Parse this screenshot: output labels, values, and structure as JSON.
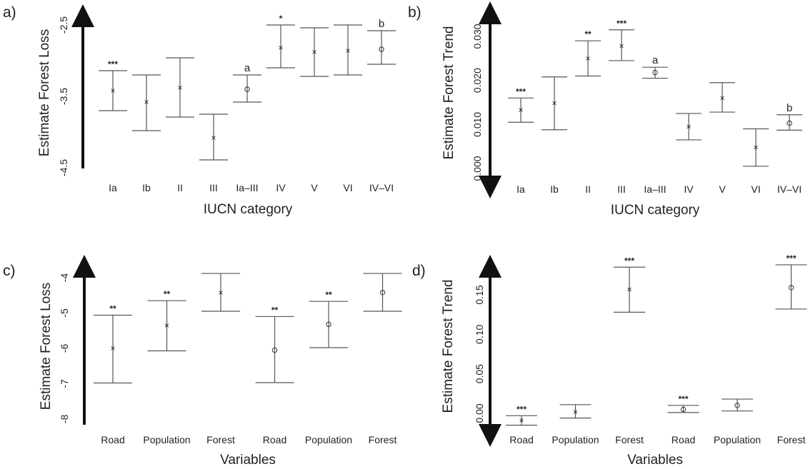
{
  "chart_data": [
    {
      "panel": "a)",
      "type": "scatter",
      "ylabel": "Estimate Forest Loss",
      "xlabel": "IUCN category",
      "ylim": [
        -4.5,
        -2.5
      ],
      "yticks": [
        -2.5,
        -3.5,
        -4.5
      ],
      "y_tick_labels": [
        "-2.5",
        "-3.5",
        "-4.5"
      ],
      "categories": [
        "Ia",
        "Ib",
        "II",
        "III",
        "Ia–III",
        "IV",
        "V",
        "VI",
        "IV–VI"
      ],
      "estimate": [
        -3.42,
        -3.58,
        -3.38,
        -4.08,
        -3.4,
        -2.82,
        -2.88,
        -2.86,
        -2.84
      ],
      "lower": [
        -3.7,
        -3.98,
        -3.79,
        -4.39,
        -3.58,
        -3.1,
        -3.22,
        -3.2,
        -3.05
      ],
      "upper": [
        -3.14,
        -3.2,
        -2.96,
        -3.75,
        -3.2,
        -2.5,
        -2.54,
        -2.5,
        -2.58
      ],
      "markers": [
        "x",
        "x",
        "x",
        "x",
        "o",
        "x",
        "x",
        "x",
        "o"
      ],
      "significance": [
        "***",
        "",
        "",
        "",
        "",
        "*",
        "",
        "",
        ""
      ],
      "group_labels": [
        "",
        "",
        "",
        "",
        "a",
        "",
        "",
        "",
        "b"
      ]
    },
    {
      "panel": "b)",
      "type": "scatter",
      "ylabel": "Estimate Forest Trend",
      "xlabel": "IUCN category",
      "ylim": [
        0.0,
        0.033
      ],
      "yticks": [
        0.0,
        0.01,
        0.02,
        0.03
      ],
      "y_tick_labels": [
        "0.000",
        "0.010",
        "0.020",
        "0.030"
      ],
      "categories": [
        "Ia",
        "Ib",
        "II",
        "III",
        "Ia–III",
        "IV",
        "V",
        "VI",
        "IV–VI"
      ],
      "estimate": [
        0.0133,
        0.0148,
        0.025,
        0.0278,
        0.0218,
        0.0095,
        0.016,
        0.0048,
        0.0103
      ],
      "lower": [
        0.0105,
        0.0088,
        0.021,
        0.0245,
        0.0205,
        0.0065,
        0.0128,
        0.0005,
        0.0087
      ],
      "upper": [
        0.016,
        0.0208,
        0.029,
        0.0315,
        0.023,
        0.0125,
        0.0195,
        0.009,
        0.0122
      ],
      "markers": [
        "x",
        "x",
        "x",
        "x",
        "o",
        "x",
        "x",
        "x",
        "o"
      ],
      "significance": [
        "***",
        "",
        "**",
        "***",
        "",
        "",
        "",
        "",
        ""
      ],
      "group_labels": [
        "",
        "",
        "",
        "",
        "a",
        "",
        "",
        "",
        "b"
      ]
    },
    {
      "panel": "c)",
      "type": "scatter",
      "ylabel": "Estimate Forest Loss",
      "xlabel": "Variables",
      "ylim": [
        -8,
        -3.6
      ],
      "yticks": [
        -4,
        -5,
        -6,
        -7,
        -8
      ],
      "y_tick_labels": [
        "-4",
        "-5",
        "-6",
        "-7",
        "-8"
      ],
      "categories": [
        "Road",
        "Population",
        "Forest",
        "Road",
        "Population",
        "Forest"
      ],
      "estimate": [
        -6.0,
        -5.35,
        -4.42,
        -6.05,
        -5.32,
        -4.42
      ],
      "lower": [
        -6.98,
        -6.07,
        -4.95,
        -6.97,
        -5.98,
        -4.95
      ],
      "upper": [
        -5.06,
        -4.65,
        -3.88,
        -5.1,
        -4.67,
        -3.88
      ],
      "markers": [
        "x",
        "x",
        "x",
        "o",
        "o",
        "o"
      ],
      "significance": [
        "**",
        "**",
        "",
        "**",
        "**",
        ""
      ]
    },
    {
      "panel": "d)",
      "type": "scatter",
      "ylabel": "Estimate Forest Trend",
      "xlabel": "Variables",
      "ylim": [
        -0.01,
        0.19
      ],
      "yticks": [
        0.0,
        0.05,
        0.1,
        0.15
      ],
      "y_tick_labels": [
        "0.00",
        "0.05",
        "0.10",
        "0.15"
      ],
      "categories": [
        "Road",
        "Population",
        "Forest",
        "Road",
        "Population",
        "Forest"
      ],
      "estimate": [
        -0.009,
        0.002,
        0.157,
        0.005,
        0.01,
        0.159
      ],
      "lower": [
        -0.015,
        -0.006,
        0.128,
        0.001,
        0.003,
        0.132
      ],
      "upper": [
        -0.003,
        0.011,
        0.185,
        0.01,
        0.018,
        0.188
      ],
      "markers": [
        "x",
        "x",
        "x",
        "o",
        "o",
        "o"
      ],
      "significance": [
        "***",
        "",
        "***",
        "***",
        "",
        "***"
      ]
    }
  ]
}
